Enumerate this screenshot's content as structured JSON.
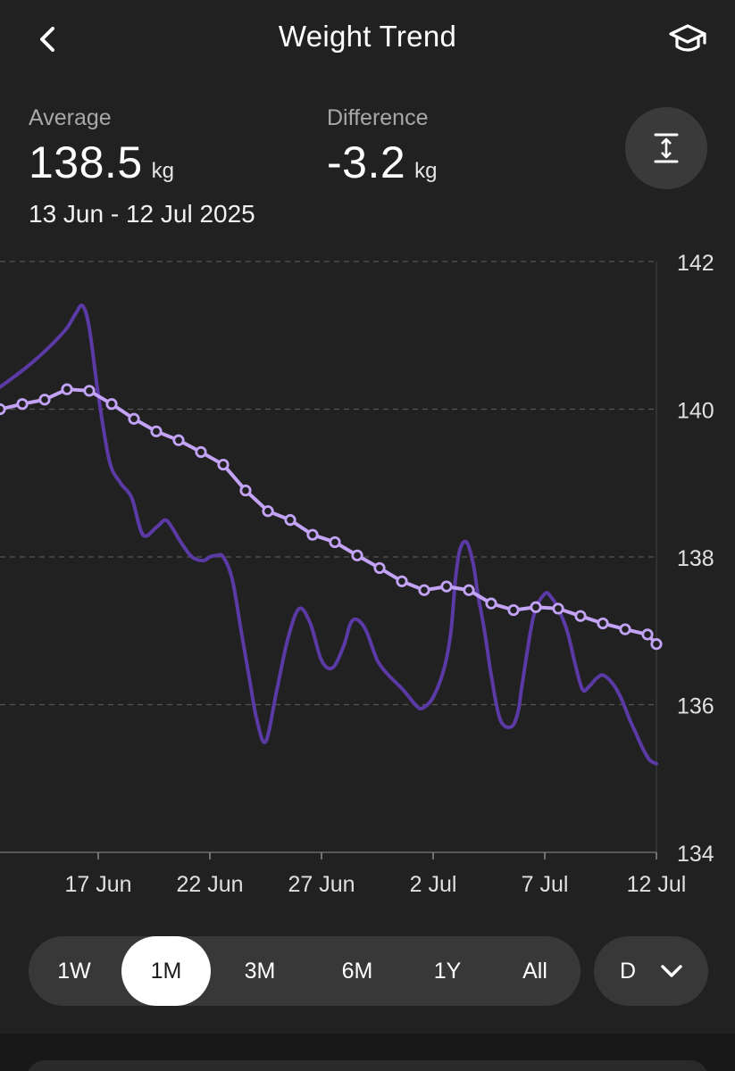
{
  "header": {
    "title": "Weight Trend",
    "back_icon": "chevron-left-icon",
    "learn_icon": "graduation-cap-icon"
  },
  "stats": {
    "average_label": "Average",
    "average_value": "138.5",
    "average_unit": "kg",
    "difference_label": "Difference",
    "difference_value": "-3.2",
    "difference_unit": "kg",
    "date_range": "13 Jun - 12 Jul 2025"
  },
  "scale_button_icon": "vertical-fit-icon",
  "chart_data": {
    "type": "line",
    "y_ticks": [
      "142",
      "140",
      "138",
      "136",
      "134"
    ],
    "ylim": [
      134,
      142
    ],
    "x_ticks": [
      "17 Jun",
      "22 Jun",
      "27 Jun",
      "2 Jul",
      "7 Jul",
      "12 Jul"
    ],
    "x_tick_days": [
      4,
      9,
      14,
      19,
      24,
      29
    ],
    "xlim": [
      -0.4,
      29
    ],
    "grid": true,
    "series": [
      {
        "role": "daily",
        "color": "#5b3aa6",
        "x": [
          -0.4,
          0.5,
          1.3,
          2.0,
          2.6,
          3.0,
          3.3,
          3.6,
          4.0,
          4.5,
          5.0,
          5.5,
          6.0,
          6.6,
          7.0,
          7.3,
          7.7,
          8.2,
          8.7,
          9.0,
          9.3,
          9.6,
          10.0,
          10.4,
          10.8,
          11.1,
          11.5,
          12.0,
          12.5,
          13.0,
          13.5,
          14.0,
          14.5,
          15.0,
          15.3,
          15.6,
          16.0,
          16.5,
          17.0,
          17.5,
          17.8,
          18.2,
          18.5,
          19.0,
          19.5,
          19.8,
          20.0,
          20.2,
          20.5,
          20.8,
          21.0,
          21.3,
          21.6,
          22.0,
          22.5,
          22.8,
          23.0,
          23.5,
          24.0,
          24.3,
          24.6,
          25.0,
          25.4,
          25.7,
          26.0,
          26.3,
          26.6,
          27.0,
          27.4,
          27.8,
          28.1,
          28.4,
          28.7,
          29.0
        ],
        "y": [
          140.3,
          140.5,
          140.7,
          140.9,
          141.1,
          141.3,
          141.4,
          141.1,
          140.2,
          139.3,
          139.0,
          138.8,
          138.3,
          138.4,
          138.5,
          138.4,
          138.2,
          138.0,
          137.95,
          138.0,
          138.02,
          138.0,
          137.7,
          137.0,
          136.3,
          135.8,
          135.5,
          136.2,
          136.9,
          137.3,
          137.1,
          136.6,
          136.5,
          136.8,
          137.1,
          137.15,
          137.0,
          136.6,
          136.4,
          136.25,
          136.15,
          136.0,
          135.95,
          136.1,
          136.5,
          137.0,
          137.7,
          138.1,
          138.2,
          137.9,
          137.5,
          137.0,
          136.4,
          135.8,
          135.7,
          135.9,
          136.3,
          137.2,
          137.5,
          137.45,
          137.3,
          137.0,
          136.5,
          136.2,
          136.25,
          136.35,
          136.4,
          136.3,
          136.1,
          135.8,
          135.6,
          135.4,
          135.25,
          135.2
        ]
      },
      {
        "role": "trend",
        "color": "#c3a3f5",
        "x": [
          -0.4,
          0.6,
          1.6,
          2.6,
          3.6,
          4.6,
          5.6,
          6.6,
          7.6,
          8.6,
          9.6,
          10.6,
          11.6,
          12.6,
          13.6,
          14.6,
          15.6,
          16.6,
          17.6,
          18.6,
          19.6,
          20.6,
          21.6,
          22.6,
          23.6,
          24.6,
          25.6,
          26.6,
          27.6,
          28.6,
          29.0
        ],
        "y": [
          140.0,
          140.07,
          140.13,
          140.27,
          140.25,
          140.07,
          139.87,
          139.7,
          139.58,
          139.42,
          139.25,
          138.9,
          138.62,
          138.5,
          138.3,
          138.2,
          138.02,
          137.85,
          137.67,
          137.55,
          137.6,
          137.55,
          137.37,
          137.28,
          137.32,
          137.3,
          137.2,
          137.1,
          137.02,
          136.95,
          136.82
        ]
      }
    ]
  },
  "range_tabs": [
    {
      "label": "1W",
      "selected": false
    },
    {
      "label": "1M",
      "selected": true
    },
    {
      "label": "3M",
      "selected": false
    },
    {
      "label": "6M",
      "selected": false
    },
    {
      "label": "1Y",
      "selected": false
    },
    {
      "label": "All",
      "selected": false
    }
  ],
  "aggregation": {
    "value": "D",
    "icon": "chevron-down-icon"
  },
  "colors": {
    "background": "#212121",
    "grid": "#555555",
    "daily_line": "#5b3aa6",
    "trend_line": "#c3a3f5"
  }
}
